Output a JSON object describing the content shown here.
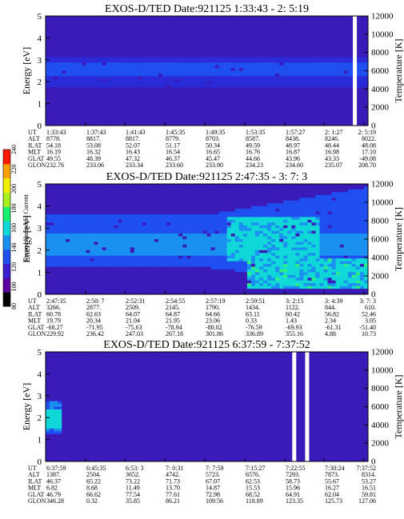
{
  "colorbar": {
    "label": "Second Harmonic Current",
    "ticks": [
      "80",
      "100",
      "120",
      "140",
      "160",
      "180",
      "200",
      "220",
      "240"
    ],
    "colors": [
      "#000000",
      "#5a00a0",
      "#3a20d0",
      "#1f4ff0",
      "#1a90f0",
      "#10d8d8",
      "#18f070",
      "#a8f020",
      "#f0f000",
      "#f8a000",
      "#ff1800"
    ]
  },
  "chart_data": [
    {
      "type": "heatmap",
      "title": "EXOS-D/TED   Date:921125  1:33:43 - 2: 5:19",
      "ylabel": "Energy [eV]",
      "y2label": "Temperature [K]",
      "ylim": [
        0,
        5
      ],
      "yticks": [
        "0",
        "1",
        "2",
        "3",
        "4",
        "5"
      ],
      "y2lim": [
        0,
        12000
      ],
      "y2ticks": [
        "0",
        "2000",
        "4000",
        "6000",
        "8000",
        "10000",
        "12000"
      ],
      "band": {
        "low": 1.8,
        "high": 3.1,
        "peak_low": 2.2,
        "peak_high": 2.9,
        "level": "medium"
      },
      "gaps": [
        0.958
      ],
      "table": {
        "row_labels": [
          "UT",
          "ALT",
          "ILAT",
          "MLT",
          "GLAT",
          "GLON"
        ],
        "columns": [
          [
            "1:33:43",
            "8778.",
            "54.18",
            "16.19",
            "49.55",
            "232.76"
          ],
          [
            "1:37:43",
            "8817.",
            "53.08",
            "16.32",
            "48.39",
            "233.06"
          ],
          [
            "1:41:43",
            "8817.",
            "52.07",
            "16.43",
            "47.32",
            "233.34"
          ],
          [
            "1:45:35",
            "8779.",
            "51.17",
            "16.54",
            "46.37",
            "233.60"
          ],
          [
            "1:49:35",
            "8703.",
            "50.34",
            "16.65",
            "45.47",
            "233.90"
          ],
          [
            "1:53:35",
            "8587.",
            "49.59",
            "16.76",
            "44.66",
            "234.23"
          ],
          [
            "1:57:27",
            "8438.",
            "48.97",
            "16.87",
            "43.96",
            "234.60"
          ],
          [
            "2: 1:27",
            "8246.",
            "48.44",
            "16.98",
            "43.33",
            "235.07"
          ],
          [
            "2: 5:19",
            "8022.",
            "48.08",
            "17.10",
            "-49.08",
            "208.70"
          ]
        ]
      }
    },
    {
      "type": "heatmap",
      "title": "EXOS-D/TED   Date:921125  2:47:35 - 3: 7: 3",
      "ylabel": "Energy [eV]",
      "y2label": "Temperature [K]",
      "ylim": [
        0,
        5
      ],
      "yticks": [
        "0",
        "1",
        "2",
        "3",
        "4",
        "5"
      ],
      "y2lim": [
        0,
        12000
      ],
      "y2ticks": [
        "0",
        "2000",
        "4000",
        "6000",
        "8000",
        "10000",
        "12000"
      ],
      "band": {
        "low": 1.2,
        "high": 3.6,
        "peak_low": 1.8,
        "peak_high": 2.8,
        "level": "high"
      },
      "gaps": [],
      "table": {
        "row_labels": [
          "UT",
          "ALT",
          "ILAT",
          "MLT",
          "GLAT",
          "GLON"
        ],
        "columns": [
          [
            "2:47:35",
            "3266.",
            "60.78",
            "19.79",
            "-68.27",
            "229.92"
          ],
          [
            "2:50: 7",
            "2877.",
            "62.63",
            "20.34",
            "-71.95",
            "236.42"
          ],
          [
            "2:52:31",
            "2509.",
            "64.07",
            "21.04",
            "-75.63",
            "247.03"
          ],
          [
            "2:54:55",
            "2145.",
            "64.87",
            "21.95",
            "-78.94",
            "267.18"
          ],
          [
            "2:57:19",
            "1790.",
            "64.66",
            "23.06",
            "-80.02",
            "301.86"
          ],
          [
            "2:59:51",
            "1434.",
            "63.11",
            "0.33",
            "-76.59",
            "336.89"
          ],
          [
            "3: 2:15",
            "1122.",
            "60.42",
            "1.43",
            "-69.93",
            "355.16"
          ],
          [
            "3: 4:39",
            "844.",
            "56.82",
            "2.34",
            "-61.31",
            "4.88"
          ],
          [
            "3: 7: 3",
            "610.",
            "52.46",
            "3.05",
            "-51.40",
            "10.73"
          ]
        ]
      }
    },
    {
      "type": "heatmap",
      "title": "EXOS-D/TED   Date:921125  6:37:59 - 7:37:52",
      "ylabel": "Energy [eV]",
      "y2label": "Temperature [K]",
      "ylim": [
        0,
        5
      ],
      "yticks": [
        "0",
        "1",
        "2",
        "3",
        "4",
        "5"
      ],
      "y2lim": [
        0,
        12000
      ],
      "y2ticks": [
        "0",
        "2000",
        "4000",
        "6000",
        "8000",
        "10000",
        "12000"
      ],
      "band": {
        "low": 1.3,
        "high": 2.8,
        "peak_low": 1.5,
        "peak_high": 2.4,
        "level": "spot"
      },
      "gaps": [
        0.77,
        0.81
      ],
      "table": {
        "row_labels": [
          "UT",
          "ALT",
          "ILAT",
          "MLT",
          "GLAT",
          "GLON"
        ],
        "columns": [
          [
            "6:37:59",
            "1387.",
            "46.37",
            "6.82",
            "46.79",
            "346.28"
          ],
          [
            "6:45:35",
            "2504.",
            "65.22",
            "8.68",
            "66.62",
            "0.32"
          ],
          [
            "6:53: 3",
            "3652.",
            "73.22",
            "11.49",
            "77.54",
            "35.85"
          ],
          [
            "7: 0:31",
            "4742.",
            "71.73",
            "13.70",
            "77.61",
            "86.21"
          ],
          [
            "7: 7:59",
            "5723.",
            "67.07",
            "14.87",
            "72.98",
            "109.56"
          ],
          [
            "7:15:27",
            "6576.",
            "62.53",
            "15.53",
            "68.52",
            "118.89"
          ],
          [
            "7:22:55",
            "7293.",
            "58.73",
            "15.96",
            "64.91",
            "123.35"
          ],
          [
            "7:30:24",
            "7873.",
            "55.67",
            "16.27",
            "62.04",
            "125.73"
          ],
          [
            "7:37:52",
            "8314.",
            "53.27",
            "16.51",
            "59.81",
            "127.06"
          ]
        ]
      }
    }
  ]
}
